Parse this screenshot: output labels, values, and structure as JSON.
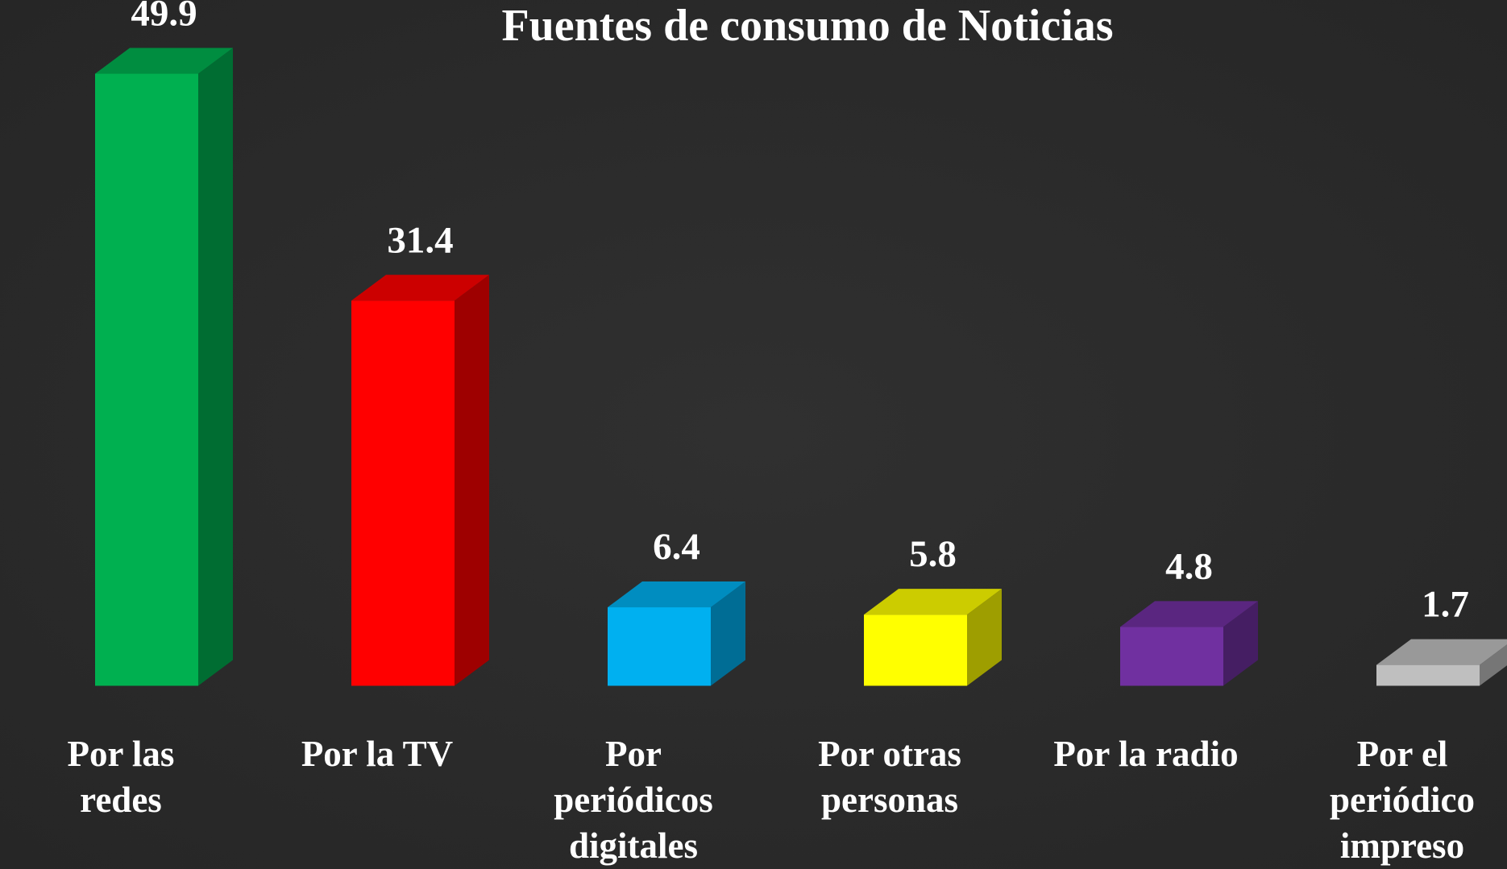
{
  "chart_data": {
    "type": "bar3d",
    "title": "Fuentes de consumo de Noticias",
    "categories": [
      "Por las redes",
      "Por la TV",
      "Por periódicos digitales",
      "Por otras personas",
      "Por la radio",
      "Por el periódico impreso"
    ],
    "values": [
      49.9,
      31.4,
      6.4,
      5.8,
      4.8,
      1.7
    ],
    "colors": [
      "#00b050",
      "#ff0000",
      "#00b0f0",
      "#ffff00",
      "#7030a0",
      "#bfbfbf"
    ]
  }
}
